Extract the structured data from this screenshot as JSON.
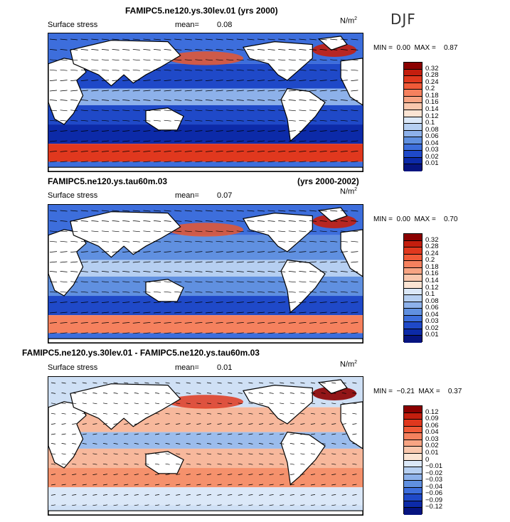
{
  "season": "DJF",
  "panels": [
    {
      "title": "FAMIPC5.ne120.ys.30lev.01 (yrs 2000)",
      "title_right": "",
      "field": "Surface stress",
      "mean_label": "mean=",
      "mean": "0.08",
      "units": "N/m",
      "units_exp": "2",
      "min_label": "MIN =",
      "min": "0.00",
      "max_label": "MAX =",
      "max": "0.87",
      "colorbar_levels": [
        "0.32",
        "0.28",
        "0.24",
        "0.2",
        "0.18",
        "0.16",
        "0.14",
        "0.12",
        "0.1",
        "0.08",
        "0.06",
        "0.04",
        "0.03",
        "0.02",
        "0.01"
      ],
      "colorbar_colors": [
        "#8b0000",
        "#c41e0e",
        "#e0381e",
        "#f05a38",
        "#f5815e",
        "#f7a483",
        "#f9c7ad",
        "#fbe4d3",
        "#dbe8f8",
        "#b6cff1",
        "#8db1ea",
        "#6090e0",
        "#3d6edc",
        "#1f49c8",
        "#0c2aa8",
        "#061480"
      ]
    },
    {
      "title": "FAMIPC5.ne120.ys.tau60m.03",
      "title_right": "(yrs 2000-2002)",
      "field": "Surface stress",
      "mean_label": "mean=",
      "mean": "0.07",
      "units": "N/m",
      "units_exp": "2",
      "min_label": "MIN =",
      "min": "0.00",
      "max_label": "MAX =",
      "max": "0.70",
      "colorbar_levels": [
        "0.32",
        "0.28",
        "0.24",
        "0.2",
        "0.18",
        "0.16",
        "0.14",
        "0.12",
        "0.1",
        "0.08",
        "0.06",
        "0.04",
        "0.03",
        "0.02",
        "0.01"
      ],
      "colorbar_colors": [
        "#8b0000",
        "#c41e0e",
        "#e0381e",
        "#f05a38",
        "#f5815e",
        "#f7a483",
        "#f9c7ad",
        "#fbe4d3",
        "#dbe8f8",
        "#b6cff1",
        "#8db1ea",
        "#6090e0",
        "#3d6edc",
        "#1f49c8",
        "#0c2aa8",
        "#061480"
      ]
    },
    {
      "title": "FAMIPC5.ne120.ys.30lev.01 - FAMIPC5.ne120.ys.tau60m.03",
      "title_right": "",
      "field": "Surface stress",
      "mean_label": "mean=",
      "mean": "0.01",
      "units": "N/m",
      "units_exp": "2",
      "min_label": "MIN =",
      "min": "−0.21",
      "max_label": "MAX =",
      "max": "0.37",
      "colorbar_levels": [
        "0.12",
        "0.09",
        "0.06",
        "0.04",
        "0.03",
        "0.02",
        "0.01",
        "0",
        "−0.01",
        "−0.02",
        "−0.03",
        "−0.04",
        "−0.06",
        "−0.09",
        "−0.12"
      ],
      "colorbar_colors": [
        "#8b0000",
        "#c41e0e",
        "#e0381e",
        "#f05a38",
        "#f5815e",
        "#f7a483",
        "#f9c7ad",
        "#fbe4d3",
        "#dbe8f8",
        "#b6cff1",
        "#8db1ea",
        "#6090e0",
        "#3d6edc",
        "#1f49c8",
        "#0c2aa8",
        "#061480"
      ]
    }
  ],
  "chart_data": [
    {
      "type": "heatmap",
      "title": "FAMIPC5.ne120.ys.30lev.01 (yrs 2000)",
      "variable": "Surface stress",
      "units": "N/m2",
      "mean": 0.08,
      "min": 0.0,
      "max": 0.87,
      "levels": [
        0.01,
        0.02,
        0.03,
        0.04,
        0.06,
        0.08,
        0.1,
        0.12,
        0.14,
        0.16,
        0.18,
        0.2,
        0.24,
        0.28,
        0.32
      ]
    },
    {
      "type": "heatmap",
      "title": "FAMIPC5.ne120.ys.tau60m.03 (yrs 2000-2002)",
      "variable": "Surface stress",
      "units": "N/m2",
      "mean": 0.07,
      "min": 0.0,
      "max": 0.7,
      "levels": [
        0.01,
        0.02,
        0.03,
        0.04,
        0.06,
        0.08,
        0.1,
        0.12,
        0.14,
        0.16,
        0.18,
        0.2,
        0.24,
        0.28,
        0.32
      ]
    },
    {
      "type": "heatmap",
      "title": "FAMIPC5.ne120.ys.30lev.01 - FAMIPC5.ne120.ys.tau60m.03",
      "variable": "Surface stress",
      "units": "N/m2",
      "mean": 0.01,
      "min": -0.21,
      "max": 0.37,
      "levels": [
        -0.12,
        -0.09,
        -0.06,
        -0.04,
        -0.03,
        -0.02,
        -0.01,
        0,
        0.01,
        0.02,
        0.03,
        0.04,
        0.06,
        0.09,
        0.12
      ]
    }
  ]
}
